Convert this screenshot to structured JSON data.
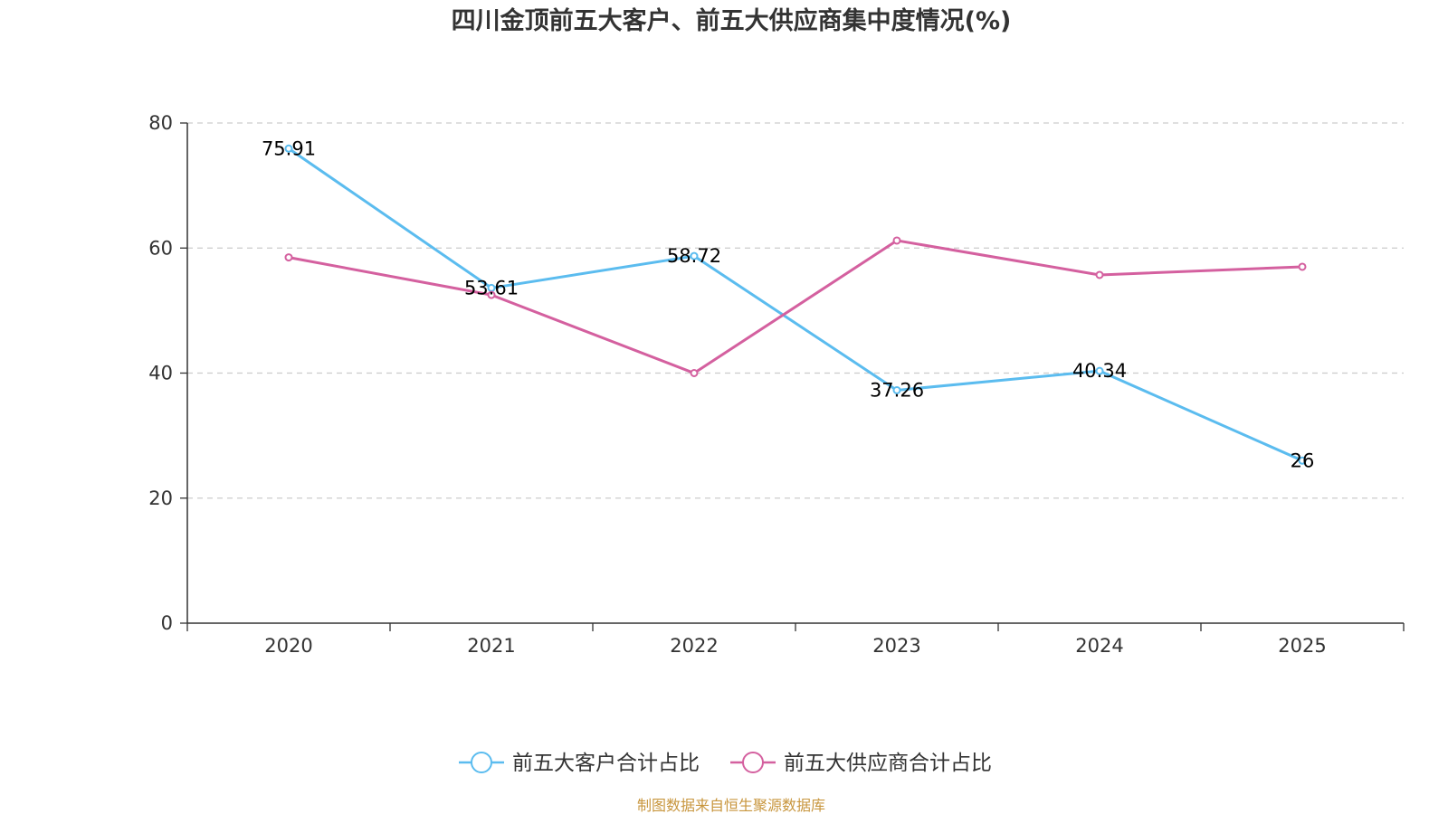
{
  "chart_data": {
    "type": "line",
    "title": "四川金顶前五大客户、前五大供应商集中度情况(%)",
    "categories": [
      "2020",
      "2021",
      "2022",
      "2023",
      "2024",
      "2025"
    ],
    "ylim": [
      0,
      80
    ],
    "yticks": [
      0,
      20,
      40,
      60,
      80
    ],
    "grid": true,
    "legend_position": "bottom-center",
    "series": [
      {
        "name": "前五大客户合计占比",
        "color": "#5bbcef",
        "values": [
          75.91,
          53.61,
          58.72,
          37.26,
          40.34,
          26
        ],
        "labels": [
          "75.91",
          "53.61",
          "58.72",
          "37.26",
          "40.34",
          "26"
        ]
      },
      {
        "name": "前五大供应商合计占比",
        "color": "#d4609f",
        "values": [
          58.5,
          52.5,
          40.0,
          61.2,
          55.7,
          57.0
        ],
        "labels": []
      }
    ],
    "source": "制图数据来自恒生聚源数据库"
  }
}
